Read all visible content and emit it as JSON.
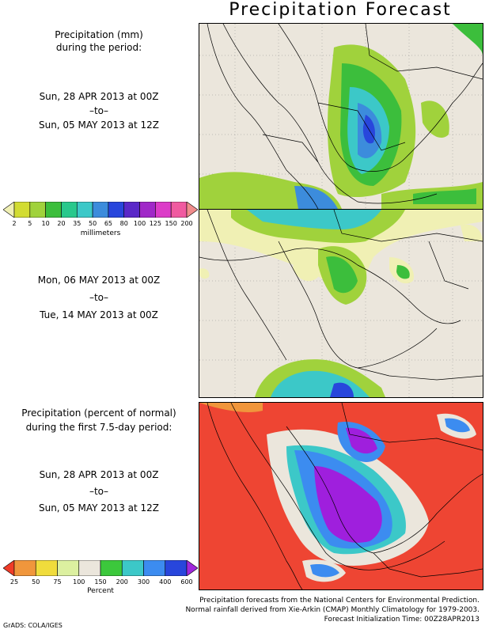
{
  "title": "Precipitation Forecast",
  "panel1": {
    "heading_line1": "Precipitation (mm)",
    "heading_line2": "during the period:",
    "start": "Sun, 28 APR 2013 at 00Z",
    "sep": "–to–",
    "end": "Sun, 05 MAY 2013 at 12Z"
  },
  "panel2": {
    "start": "Mon, 06 MAY 2013 at 00Z",
    "sep": "–to–",
    "end": "Tue, 14 MAY 2013 at 00Z"
  },
  "panel3": {
    "heading_line1": "Precipitation (percent of normal)",
    "heading_line2": "during the first 7.5-day period:",
    "start": "Sun, 28 APR 2013 at 00Z",
    "sep": "–to–",
    "end": "Sun, 05 MAY 2013 at 12Z"
  },
  "mm_legend": {
    "unit": "millimeters",
    "ticks": [
      "2",
      "5",
      "10",
      "20",
      "35",
      "50",
      "65",
      "80",
      "100",
      "125",
      "150",
      "200"
    ],
    "colors": [
      "#f0f0b4",
      "#d2dc32",
      "#a0d23c",
      "#3cbe3c",
      "#28c88c",
      "#3cc8c8",
      "#3c8cdc",
      "#2846dc",
      "#5a28c8",
      "#a028c8",
      "#dc3cc8",
      "#f05aa0",
      "#f08c8c"
    ]
  },
  "pct_legend": {
    "unit": "Percent",
    "ticks": [
      "25",
      "50",
      "75",
      "100",
      "150",
      "200",
      "300",
      "400",
      "600"
    ],
    "colors": [
      "#f03c28",
      "#f0963c",
      "#f0dc3c",
      "#dcf0a0",
      "#ebe6dc",
      "#3cc83c",
      "#3cc8c8",
      "#3c8cf0",
      "#2846dc",
      "#a028dc"
    ]
  },
  "map_colors": {
    "land": "#ebe6dc",
    "border": "#000000",
    "grid": "#8c8c8c",
    "red": "#ee4533",
    "purple": "#9f1fdd"
  },
  "footer": {
    "line1": "Precipitation forecasts from the National Centers for Environmental Prediction.",
    "line2": "Normal rainfall derived from Xie-Arkin (CMAP) Monthly Climatology for 1979-2003.",
    "line3": "Forecast Initialization Time: 00Z28APR2013"
  },
  "credit": "GrADS: COLA/IGES"
}
